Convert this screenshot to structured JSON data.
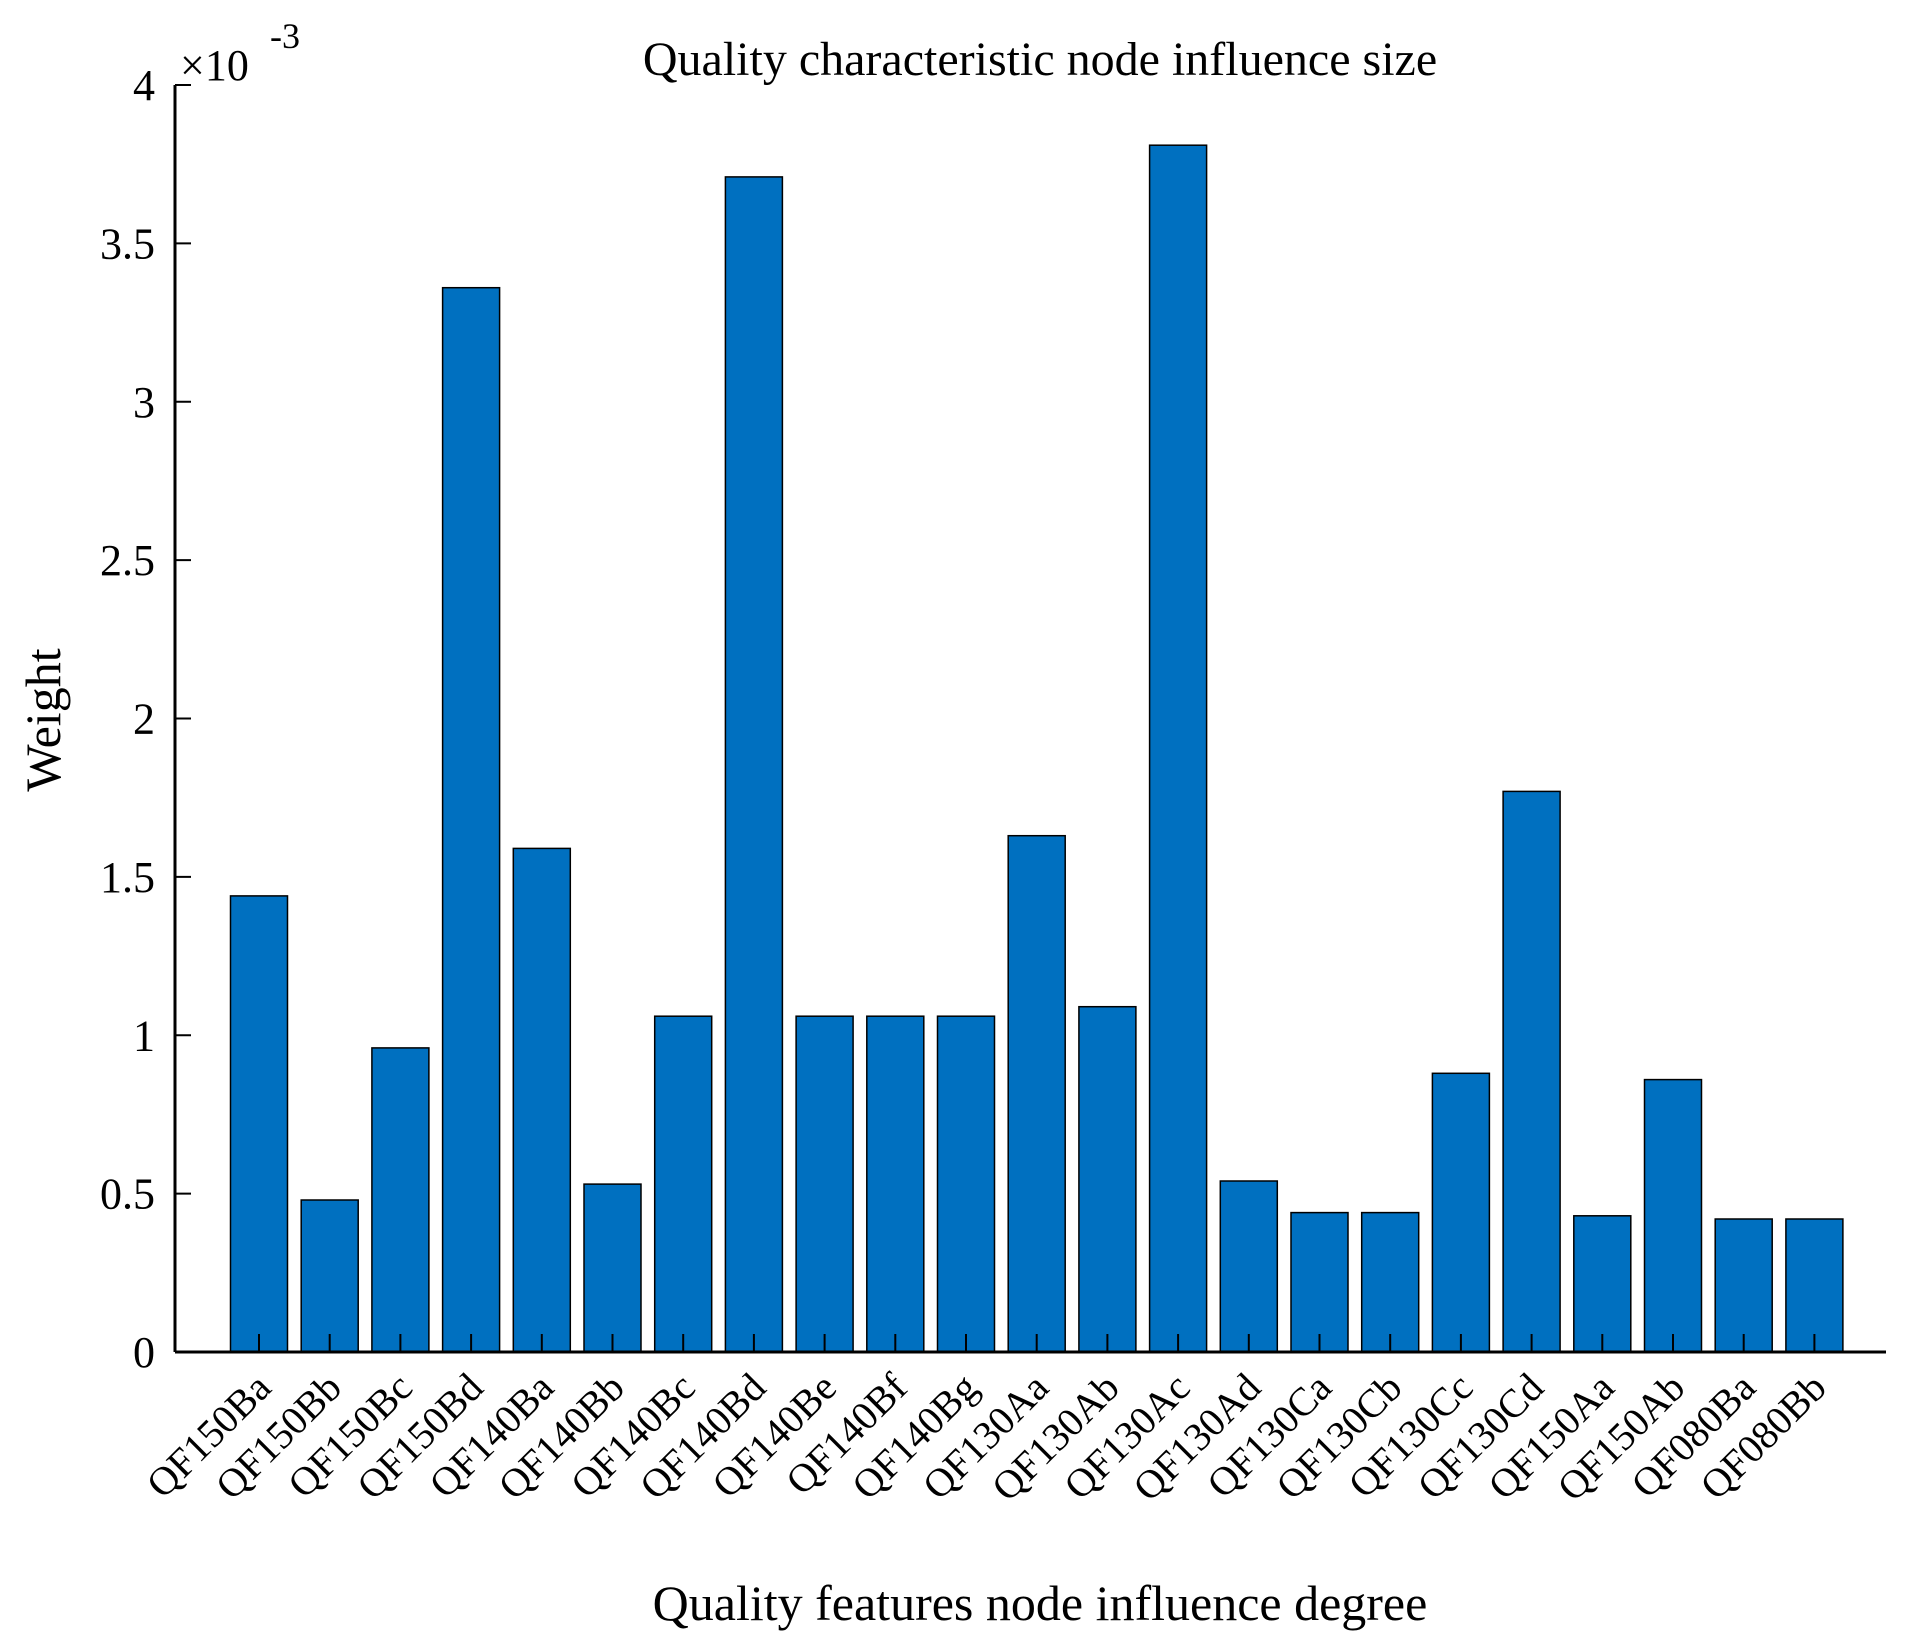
{
  "chart_data": {
    "type": "bar",
    "title": "Quality characteristic node influence size",
    "xlabel": "Quality features node influence degree",
    "ylabel": "Weight",
    "y_exponent_prefix": "×10",
    "y_exponent": "-3",
    "ylim": [
      0,
      4
    ],
    "yticks": [
      "0",
      "0.5",
      "1",
      "1.5",
      "2",
      "2.5",
      "3",
      "3.5",
      "4"
    ],
    "ytick_values": [
      0,
      0.5,
      1,
      1.5,
      2,
      2.5,
      3,
      3.5,
      4
    ],
    "bar_color": "#0070c0",
    "categories": [
      "QF150Ba",
      "QF150Bb",
      "QF150Bc",
      "QF150Bd",
      "QF140Ba",
      "QF140Bb",
      "QF140Bc",
      "QF140Bd",
      "QF140Be",
      "QF140Bf",
      "QF140Bg",
      "QF130Aa",
      "QF130Ab",
      "QF130Ac",
      "QF130Ad",
      "QF130Ca",
      "QF130Cb",
      "QF130Cc",
      "QF130Cd",
      "QF150Aa",
      "QF150Ab",
      "QF080Ba",
      "QF080Bb"
    ],
    "values": [
      1.44,
      0.48,
      0.96,
      3.36,
      1.59,
      0.53,
      1.06,
      3.71,
      1.06,
      1.06,
      1.06,
      1.63,
      1.09,
      3.81,
      0.54,
      0.44,
      0.44,
      0.88,
      1.77,
      0.43,
      0.86,
      0.42,
      0.42
    ]
  }
}
